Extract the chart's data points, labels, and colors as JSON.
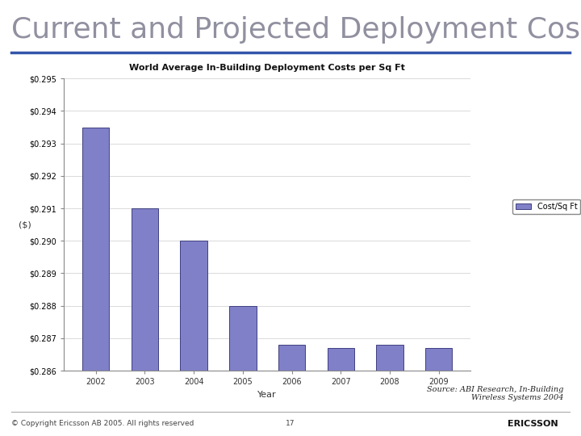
{
  "title_main": "Current and Projected Deployment Costs",
  "chart_title": "World Average In-Building Deployment Costs per Sq Ft",
  "years": [
    2002,
    2003,
    2004,
    2005,
    2006,
    2007,
    2008,
    2009
  ],
  "values": [
    0.2935,
    0.291,
    0.29,
    0.288,
    0.2868,
    0.2867,
    0.2868,
    0.2867
  ],
  "bar_color": "#8080C8",
  "bar_edge_color": "#404080",
  "ylabel": "($)",
  "xlabel": "Year",
  "legend_label": "Cost/Sq Ft",
  "ylim_min": 0.286,
  "ylim_max": 0.2945,
  "source_text": "Source: ABI Research, In-Building\nWireless Systems 2004",
  "footer_left": "© Copyright Ericsson AB 2005. All rights reserved",
  "footer_center": "17",
  "background_color": "#FFFFFF",
  "main_title_color": "#9090A0",
  "title_underline_color": "#3355AA",
  "grid_color": "#CCCCCC"
}
